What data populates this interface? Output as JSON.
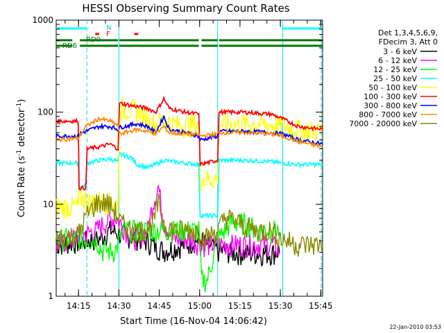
{
  "chart_data": {
    "type": "line",
    "title": "HESSI Observing Summary Count Rates",
    "xlabel": "Start Time (16-Nov-04 14:06:42)",
    "ylabel_main": "Count Rate (s",
    "ylabel_sup1": "-1",
    "ylabel_mid": " detector",
    "ylabel_sup2": "-1",
    "ylabel_end": ")",
    "yscale": "log",
    "ylim": [
      1,
      1000
    ],
    "xlim_minutes": [
      0,
      99
    ],
    "x_ticks": [
      {
        "label": "14:15",
        "min": 8.3
      },
      {
        "label": "14:30",
        "min": 23.3
      },
      {
        "label": "14:45",
        "min": 38.3
      },
      {
        "label": "15:00",
        "min": 53.3
      },
      {
        "label": "15:15",
        "min": 68.3
      },
      {
        "label": "15:30",
        "min": 83.3
      },
      {
        "label": "15:45",
        "min": 98.3
      }
    ],
    "y_ticks": [
      {
        "label": "1",
        "value": 1
      },
      {
        "label": "10",
        "value": 10
      },
      {
        "label": "100",
        "value": 100
      },
      {
        "label": "1000",
        "value": 1000
      }
    ],
    "legend_header": [
      "Det 1,3,4,5,6,9,",
      "FDecim 3, Att 0"
    ],
    "series": [
      {
        "name": "3 - 6 keV",
        "color": "#000000",
        "points": [
          [
            0,
            3.5
          ],
          [
            16,
            4
          ],
          [
            20,
            5
          ],
          [
            24,
            4.5
          ],
          [
            32,
            4
          ],
          [
            40,
            3
          ],
          [
            48,
            3.5
          ],
          [
            53,
            4
          ],
          [
            60,
            3
          ],
          [
            70,
            2.8
          ],
          [
            80,
            2.8
          ],
          [
            83,
            3
          ]
        ]
      },
      {
        "name": "6 - 12 keV",
        "color": "#ff00ff",
        "points": [
          [
            0,
            3.5
          ],
          [
            15,
            5
          ],
          [
            18,
            6
          ],
          [
            22,
            7
          ],
          [
            26,
            5
          ],
          [
            30,
            4
          ],
          [
            34,
            5
          ],
          [
            36,
            10
          ],
          [
            38,
            15
          ],
          [
            40,
            6
          ],
          [
            44,
            4
          ],
          [
            50,
            4
          ],
          [
            54,
            3.5
          ],
          [
            60,
            3.5
          ],
          [
            70,
            3.5
          ],
          [
            80,
            3.5
          ],
          [
            83,
            3
          ]
        ]
      },
      {
        "name": "12 - 25 keV",
        "color": "#00ff00",
        "points": [
          [
            0,
            4
          ],
          [
            15,
            4
          ],
          [
            17,
            3
          ],
          [
            22,
            3
          ],
          [
            25,
            5
          ],
          [
            30,
            5
          ],
          [
            40,
            5
          ],
          [
            50,
            5
          ],
          [
            53,
            5
          ],
          [
            54,
            1.5
          ],
          [
            56,
            1.4
          ],
          [
            60,
            4
          ],
          [
            65,
            6
          ],
          [
            70,
            6
          ],
          [
            75,
            5
          ],
          [
            80,
            5
          ],
          [
            83,
            5
          ]
        ]
      },
      {
        "name": "25 - 50 keV",
        "color": "#00ffff",
        "points": [
          [
            0,
            28
          ],
          [
            8.2,
            28
          ],
          [
            8.5,
            15
          ],
          [
            11,
            16
          ],
          [
            11.5,
            28
          ],
          [
            16,
            30
          ],
          [
            20,
            31
          ],
          [
            23,
            29
          ],
          [
            23.5,
            35
          ],
          [
            28,
            32
          ],
          [
            30,
            27
          ],
          [
            34,
            25
          ],
          [
            38,
            28
          ],
          [
            40,
            30
          ],
          [
            44,
            29
          ],
          [
            48,
            28
          ],
          [
            53,
            27
          ],
          [
            53.5,
            7.5
          ],
          [
            60,
            7.5
          ],
          [
            60.5,
            30
          ],
          [
            70,
            30
          ],
          [
            80,
            29
          ],
          [
            84,
            28
          ],
          [
            90,
            27
          ],
          [
            99,
            27
          ]
        ]
      },
      {
        "name": "50 - 100 keV",
        "color": "#ffff00",
        "points": [
          [
            0,
            9
          ],
          [
            8.2,
            9
          ],
          [
            8.5,
            11
          ],
          [
            11,
            11
          ],
          [
            11.5,
            10
          ],
          [
            16,
            10.5
          ],
          [
            20,
            10
          ],
          [
            23,
            9.5
          ],
          [
            23.5,
            105
          ],
          [
            30,
            100
          ],
          [
            34,
            80
          ],
          [
            37,
            70
          ],
          [
            40,
            80
          ],
          [
            44,
            70
          ],
          [
            48,
            70
          ],
          [
            53,
            70
          ],
          [
            53.5,
            18
          ],
          [
            60,
            18
          ],
          [
            60.5,
            70
          ],
          [
            70,
            72
          ],
          [
            80,
            70
          ],
          [
            84,
            68
          ],
          [
            90,
            62
          ],
          [
            99,
            60
          ]
        ]
      },
      {
        "name": "100 - 300 keV",
        "color": "#ff0000",
        "points": [
          [
            0,
            80
          ],
          [
            8.2,
            80
          ],
          [
            8.5,
            15
          ],
          [
            11,
            15
          ],
          [
            11.5,
            40
          ],
          [
            16,
            42
          ],
          [
            20,
            45
          ],
          [
            23,
            40
          ],
          [
            23.5,
            125
          ],
          [
            30,
            115
          ],
          [
            34,
            110
          ],
          [
            37,
            100
          ],
          [
            40,
            140
          ],
          [
            42,
            110
          ],
          [
            48,
            100
          ],
          [
            53,
            95
          ],
          [
            53.5,
            27
          ],
          [
            60,
            30
          ],
          [
            60.5,
            100
          ],
          [
            70,
            100
          ],
          [
            80,
            95
          ],
          [
            84,
            85
          ],
          [
            90,
            70
          ],
          [
            99,
            65
          ]
        ]
      },
      {
        "name": "300 - 800 keV",
        "color": "#0000ff",
        "points": [
          [
            0,
            55
          ],
          [
            8.2,
            55
          ],
          [
            8.5,
            58
          ],
          [
            11,
            62
          ],
          [
            16,
            70
          ],
          [
            20,
            70
          ],
          [
            23,
            65
          ],
          [
            23.5,
            68
          ],
          [
            30,
            75
          ],
          [
            34,
            70
          ],
          [
            37,
            60
          ],
          [
            40,
            90
          ],
          [
            42,
            65
          ],
          [
            48,
            60
          ],
          [
            53,
            55
          ],
          [
            53.5,
            50
          ],
          [
            60,
            55
          ],
          [
            60.5,
            62
          ],
          [
            70,
            62
          ],
          [
            80,
            60
          ],
          [
            84,
            58
          ],
          [
            90,
            50
          ],
          [
            99,
            45
          ]
        ]
      },
      {
        "name": "800 - 7000 keV",
        "color": "#ff8800",
        "points": [
          [
            0,
            50
          ],
          [
            8.2,
            52
          ],
          [
            11,
            70
          ],
          [
            16,
            85
          ],
          [
            20,
            80
          ],
          [
            23,
            72
          ],
          [
            23.5,
            58
          ],
          [
            30,
            65
          ],
          [
            34,
            62
          ],
          [
            37,
            58
          ],
          [
            40,
            70
          ],
          [
            42,
            60
          ],
          [
            48,
            58
          ],
          [
            53,
            57
          ],
          [
            53.5,
            55
          ],
          [
            60,
            58
          ],
          [
            60.5,
            60
          ],
          [
            70,
            60
          ],
          [
            80,
            58
          ],
          [
            84,
            55
          ],
          [
            90,
            48
          ],
          [
            99,
            42
          ]
        ]
      },
      {
        "name": "7000 - 20000 keV",
        "color": "#888800",
        "points": [
          [
            0,
            4
          ],
          [
            8.2,
            4.5
          ],
          [
            11,
            7
          ],
          [
            15,
            10
          ],
          [
            19,
            10
          ],
          [
            22,
            8
          ],
          [
            24,
            6
          ],
          [
            28,
            5
          ],
          [
            32,
            5
          ],
          [
            36,
            6
          ],
          [
            38,
            10
          ],
          [
            40,
            6
          ],
          [
            44,
            5
          ],
          [
            50,
            5
          ],
          [
            53,
            5
          ],
          [
            55,
            4
          ],
          [
            60,
            5
          ],
          [
            63,
            7
          ],
          [
            68,
            6
          ],
          [
            74,
            5
          ],
          [
            80,
            5
          ],
          [
            84,
            4
          ],
          [
            90,
            3.5
          ],
          [
            99,
            3.5
          ]
        ]
      }
    ],
    "attenuator_labels": {
      "N": "N",
      "F": "F",
      "RD0": "RD0",
      "RD6": "RD6"
    },
    "bars": {
      "cyan": [
        [
          0,
          11.5
        ],
        [
          84,
          99
        ]
      ],
      "red": [
        [
          14.5,
          16
        ],
        [
          29,
          30.5
        ]
      ],
      "green_top": [
        [
          0,
          6
        ],
        [
          8.8,
          23
        ],
        [
          23.5,
          53
        ],
        [
          54,
          60
        ],
        [
          60.5,
          99
        ]
      ],
      "green_bottom": [
        [
          0,
          6
        ],
        [
          8.8,
          23
        ],
        [
          23.5,
          53
        ],
        [
          54,
          60
        ],
        [
          60.5,
          99
        ]
      ]
    },
    "vlines_solid": [
      23.3,
      60.0,
      84.2
    ],
    "vlines_dashed": [
      11.4,
      98.5
    ],
    "timestamp": "22-Jan-2010 03:53"
  }
}
